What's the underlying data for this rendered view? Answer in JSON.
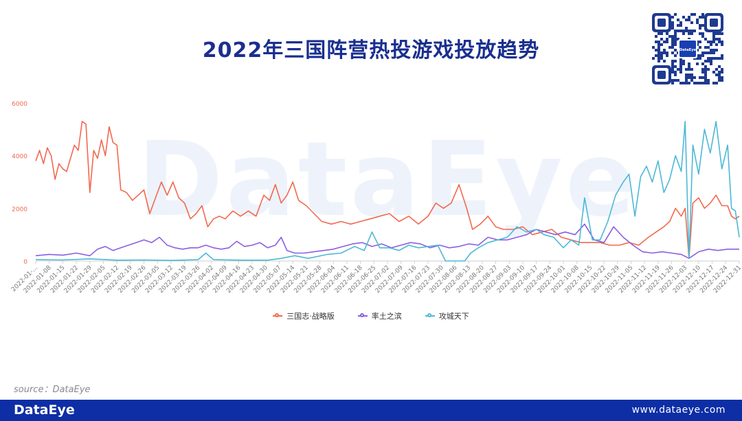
{
  "header": {
    "title": "2022年三国阵营热投游戏投放趋势"
  },
  "brand": {
    "watermark": "DataEye",
    "qr_badge": "DataEye",
    "footer_logo": "DataEye",
    "footer_url": "www.dataeye.com"
  },
  "source": "source：DataEye",
  "colors": {
    "title": "#1a2f8f",
    "footer": "#0e2ea5"
  },
  "chart_data": {
    "type": "line",
    "y_ticks": [
      "0",
      "2000",
      "4000",
      "6000"
    ],
    "ylim": [
      0,
      6000
    ],
    "x_tick_labels": [
      "2022-01-...",
      "2022-01-08",
      "2022-01-15",
      "2022-01-22",
      "2022-01-29",
      "2022-02-05",
      "2022-02-12",
      "2022-02-19",
      "2022-02-26",
      "2022-03-05",
      "2022-03-12",
      "2022-03-19",
      "2022-03-26",
      "2022-04-02",
      "2022-04-09",
      "2022-04-16",
      "2022-04-23",
      "2022-04-30",
      "2022-05-07",
      "2022-05-14",
      "2022-05-21",
      "2022-05-28",
      "2022-06-04",
      "2022-06-11",
      "2022-06-18",
      "2022-06-25",
      "2022-07-02",
      "2022-07-09",
      "2022-07-16",
      "2022-07-23",
      "2022-07-30",
      "2022-08-06",
      "2022-08-13",
      "2022-08-20",
      "2022-08-27",
      "2022-09-03",
      "2022-09-10",
      "2022-09-17",
      "2022-09-24",
      "2022-10-01",
      "2022-10-08",
      "2022-10-15",
      "2022-10-22",
      "2022-10-29",
      "2022-11-05",
      "2022-11-12",
      "2022-11-19",
      "2022-11-26",
      "2022-12-03",
      "2022-12-10",
      "2022-12-17",
      "2022-12-24",
      "2022-12-31"
    ],
    "xlim": [
      "2022-01-01",
      "2022-12-31"
    ],
    "legend_position": "bottom",
    "grid": false,
    "series": [
      {
        "name": "三国志·战略版",
        "color": "#f2684f",
        "points": [
          [
            "2022-01-01",
            3800
          ],
          [
            "2022-01-03",
            4200
          ],
          [
            "2022-01-05",
            3700
          ],
          [
            "2022-01-07",
            4300
          ],
          [
            "2022-01-09",
            4000
          ],
          [
            "2022-01-11",
            3100
          ],
          [
            "2022-01-13",
            3700
          ],
          [
            "2022-01-15",
            3500
          ],
          [
            "2022-01-17",
            3400
          ],
          [
            "2022-01-19",
            3900
          ],
          [
            "2022-01-21",
            4400
          ],
          [
            "2022-01-23",
            4200
          ],
          [
            "2022-01-25",
            5300
          ],
          [
            "2022-01-27",
            5200
          ],
          [
            "2022-01-29",
            2600
          ],
          [
            "2022-01-31",
            4200
          ],
          [
            "2022-02-02",
            3900
          ],
          [
            "2022-02-04",
            4600
          ],
          [
            "2022-02-06",
            4000
          ],
          [
            "2022-02-08",
            5100
          ],
          [
            "2022-02-10",
            4500
          ],
          [
            "2022-02-12",
            4400
          ],
          [
            "2022-02-14",
            2700
          ],
          [
            "2022-02-17",
            2600
          ],
          [
            "2022-02-20",
            2300
          ],
          [
            "2022-02-23",
            2500
          ],
          [
            "2022-02-26",
            2700
          ],
          [
            "2022-03-01",
            1800
          ],
          [
            "2022-03-04",
            2400
          ],
          [
            "2022-03-07",
            3000
          ],
          [
            "2022-03-10",
            2500
          ],
          [
            "2022-03-13",
            3000
          ],
          [
            "2022-03-16",
            2400
          ],
          [
            "2022-03-19",
            2200
          ],
          [
            "2022-03-22",
            1600
          ],
          [
            "2022-03-25",
            1800
          ],
          [
            "2022-03-28",
            2100
          ],
          [
            "2022-03-31",
            1300
          ],
          [
            "2022-04-03",
            1600
          ],
          [
            "2022-04-06",
            1700
          ],
          [
            "2022-04-09",
            1600
          ],
          [
            "2022-04-13",
            1900
          ],
          [
            "2022-04-17",
            1700
          ],
          [
            "2022-04-21",
            1900
          ],
          [
            "2022-04-25",
            1700
          ],
          [
            "2022-04-29",
            2500
          ],
          [
            "2022-05-02",
            2300
          ],
          [
            "2022-05-05",
            2900
          ],
          [
            "2022-05-08",
            2200
          ],
          [
            "2022-05-11",
            2500
          ],
          [
            "2022-05-14",
            3000
          ],
          [
            "2022-05-17",
            2300
          ],
          [
            "2022-05-21",
            2100
          ],
          [
            "2022-05-25",
            1800
          ],
          [
            "2022-05-29",
            1500
          ],
          [
            "2022-06-03",
            1400
          ],
          [
            "2022-06-08",
            1500
          ],
          [
            "2022-06-13",
            1400
          ],
          [
            "2022-06-18",
            1500
          ],
          [
            "2022-06-23",
            1600
          ],
          [
            "2022-06-28",
            1700
          ],
          [
            "2022-07-03",
            1800
          ],
          [
            "2022-07-08",
            1500
          ],
          [
            "2022-07-13",
            1700
          ],
          [
            "2022-07-18",
            1400
          ],
          [
            "2022-07-23",
            1700
          ],
          [
            "2022-07-27",
            2200
          ],
          [
            "2022-07-31",
            2000
          ],
          [
            "2022-08-04",
            2200
          ],
          [
            "2022-08-08",
            2900
          ],
          [
            "2022-08-12",
            2000
          ],
          [
            "2022-08-15",
            1200
          ],
          [
            "2022-08-19",
            1400
          ],
          [
            "2022-08-23",
            1700
          ],
          [
            "2022-08-27",
            1300
          ],
          [
            "2022-08-31",
            1200
          ],
          [
            "2022-09-05",
            1200
          ],
          [
            "2022-09-10",
            1300
          ],
          [
            "2022-09-15",
            1000
          ],
          [
            "2022-09-20",
            1100
          ],
          [
            "2022-09-25",
            1200
          ],
          [
            "2022-09-30",
            900
          ],
          [
            "2022-10-05",
            800
          ],
          [
            "2022-10-10",
            700
          ],
          [
            "2022-10-15",
            700
          ],
          [
            "2022-10-20",
            700
          ],
          [
            "2022-10-25",
            600
          ],
          [
            "2022-10-30",
            600
          ],
          [
            "2022-11-04",
            700
          ],
          [
            "2022-11-09",
            600
          ],
          [
            "2022-11-14",
            900
          ],
          [
            "2022-11-18",
            1100
          ],
          [
            "2022-11-22",
            1300
          ],
          [
            "2022-11-25",
            1500
          ],
          [
            "2022-11-28",
            2000
          ],
          [
            "2022-12-01",
            1700
          ],
          [
            "2022-12-03",
            2000
          ],
          [
            "2022-12-05",
            100
          ],
          [
            "2022-12-07",
            2200
          ],
          [
            "2022-12-10",
            2400
          ],
          [
            "2022-12-13",
            2000
          ],
          [
            "2022-12-16",
            2200
          ],
          [
            "2022-12-19",
            2500
          ],
          [
            "2022-12-22",
            2100
          ],
          [
            "2022-12-25",
            2100
          ],
          [
            "2022-12-27",
            1700
          ],
          [
            "2022-12-29",
            1600
          ],
          [
            "2022-12-31",
            1700
          ]
        ]
      },
      {
        "name": "率土之滨",
        "color": "#8c5ee0",
        "points": [
          [
            "2022-01-01",
            200
          ],
          [
            "2022-01-08",
            250
          ],
          [
            "2022-01-15",
            220
          ],
          [
            "2022-01-22",
            300
          ],
          [
            "2022-01-29",
            200
          ],
          [
            "2022-02-02",
            450
          ],
          [
            "2022-02-06",
            550
          ],
          [
            "2022-02-10",
            400
          ],
          [
            "2022-02-14",
            500
          ],
          [
            "2022-02-18",
            600
          ],
          [
            "2022-02-22",
            700
          ],
          [
            "2022-02-26",
            800
          ],
          [
            "2022-03-02",
            700
          ],
          [
            "2022-03-06",
            900
          ],
          [
            "2022-03-10",
            600
          ],
          [
            "2022-03-14",
            500
          ],
          [
            "2022-03-18",
            450
          ],
          [
            "2022-03-22",
            500
          ],
          [
            "2022-03-26",
            500
          ],
          [
            "2022-03-30",
            600
          ],
          [
            "2022-04-03",
            500
          ],
          [
            "2022-04-07",
            450
          ],
          [
            "2022-04-11",
            500
          ],
          [
            "2022-04-15",
            750
          ],
          [
            "2022-04-19",
            550
          ],
          [
            "2022-04-23",
            600
          ],
          [
            "2022-04-27",
            700
          ],
          [
            "2022-05-01",
            500
          ],
          [
            "2022-05-05",
            600
          ],
          [
            "2022-05-08",
            900
          ],
          [
            "2022-05-11",
            400
          ],
          [
            "2022-05-15",
            300
          ],
          [
            "2022-05-20",
            300
          ],
          [
            "2022-05-25",
            350
          ],
          [
            "2022-05-30",
            400
          ],
          [
            "2022-06-04",
            450
          ],
          [
            "2022-06-09",
            550
          ],
          [
            "2022-06-14",
            650
          ],
          [
            "2022-06-19",
            700
          ],
          [
            "2022-06-24",
            550
          ],
          [
            "2022-06-29",
            650
          ],
          [
            "2022-07-04",
            500
          ],
          [
            "2022-07-09",
            600
          ],
          [
            "2022-07-14",
            700
          ],
          [
            "2022-07-19",
            650
          ],
          [
            "2022-07-24",
            500
          ],
          [
            "2022-07-29",
            600
          ],
          [
            "2022-08-03",
            500
          ],
          [
            "2022-08-08",
            550
          ],
          [
            "2022-08-13",
            650
          ],
          [
            "2022-08-18",
            600
          ],
          [
            "2022-08-23",
            900
          ],
          [
            "2022-08-28",
            800
          ],
          [
            "2022-09-02",
            800
          ],
          [
            "2022-09-07",
            900
          ],
          [
            "2022-09-12",
            1000
          ],
          [
            "2022-09-17",
            1200
          ],
          [
            "2022-09-22",
            1100
          ],
          [
            "2022-09-27",
            1000
          ],
          [
            "2022-10-02",
            1100
          ],
          [
            "2022-10-07",
            1000
          ],
          [
            "2022-10-12",
            1400
          ],
          [
            "2022-10-17",
            800
          ],
          [
            "2022-10-22",
            700
          ],
          [
            "2022-10-27",
            1300
          ],
          [
            "2022-11-01",
            900
          ],
          [
            "2022-11-06",
            600
          ],
          [
            "2022-11-11",
            350
          ],
          [
            "2022-11-16",
            300
          ],
          [
            "2022-11-21",
            350
          ],
          [
            "2022-11-26",
            300
          ],
          [
            "2022-12-01",
            250
          ],
          [
            "2022-12-05",
            100
          ],
          [
            "2022-12-10",
            350
          ],
          [
            "2022-12-15",
            450
          ],
          [
            "2022-12-20",
            400
          ],
          [
            "2022-12-25",
            450
          ],
          [
            "2022-12-31",
            450
          ]
        ]
      },
      {
        "name": "攻城天下",
        "color": "#4cb8d6",
        "points": [
          [
            "2022-01-01",
            50
          ],
          [
            "2022-01-15",
            40
          ],
          [
            "2022-01-29",
            80
          ],
          [
            "2022-02-12",
            30
          ],
          [
            "2022-02-26",
            40
          ],
          [
            "2022-03-12",
            20
          ],
          [
            "2022-03-26",
            50
          ],
          [
            "2022-03-30",
            300
          ],
          [
            "2022-04-03",
            50
          ],
          [
            "2022-04-17",
            30
          ],
          [
            "2022-05-01",
            30
          ],
          [
            "2022-05-08",
            100
          ],
          [
            "2022-05-15",
            200
          ],
          [
            "2022-05-22",
            100
          ],
          [
            "2022-06-01",
            250
          ],
          [
            "2022-06-08",
            300
          ],
          [
            "2022-06-15",
            550
          ],
          [
            "2022-06-20",
            400
          ],
          [
            "2022-06-24",
            1100
          ],
          [
            "2022-06-28",
            500
          ],
          [
            "2022-07-03",
            500
          ],
          [
            "2022-07-08",
            400
          ],
          [
            "2022-07-13",
            600
          ],
          [
            "2022-07-18",
            500
          ],
          [
            "2022-07-23",
            550
          ],
          [
            "2022-07-28",
            600
          ],
          [
            "2022-08-01",
            0
          ],
          [
            "2022-08-06",
            0
          ],
          [
            "2022-08-11",
            0
          ],
          [
            "2022-08-14",
            300
          ],
          [
            "2022-08-18",
            500
          ],
          [
            "2022-08-23",
            700
          ],
          [
            "2022-08-28",
            800
          ],
          [
            "2022-09-02",
            900
          ],
          [
            "2022-09-07",
            1300
          ],
          [
            "2022-09-12",
            1100
          ],
          [
            "2022-09-17",
            1200
          ],
          [
            "2022-09-21",
            1000
          ],
          [
            "2022-09-26",
            900
          ],
          [
            "2022-10-01",
            500
          ],
          [
            "2022-10-05",
            800
          ],
          [
            "2022-10-09",
            600
          ],
          [
            "2022-10-12",
            2400
          ],
          [
            "2022-10-16",
            800
          ],
          [
            "2022-10-20",
            800
          ],
          [
            "2022-10-24",
            1500
          ],
          [
            "2022-10-28",
            2500
          ],
          [
            "2022-11-01",
            3000
          ],
          [
            "2022-11-04",
            3300
          ],
          [
            "2022-11-07",
            1700
          ],
          [
            "2022-11-10",
            3200
          ],
          [
            "2022-11-13",
            3600
          ],
          [
            "2022-11-16",
            3000
          ],
          [
            "2022-11-19",
            3800
          ],
          [
            "2022-11-22",
            2600
          ],
          [
            "2022-11-25",
            3100
          ],
          [
            "2022-11-28",
            4000
          ],
          [
            "2022-12-01",
            3400
          ],
          [
            "2022-12-03",
            5300
          ],
          [
            "2022-12-05",
            100
          ],
          [
            "2022-12-07",
            4400
          ],
          [
            "2022-12-10",
            3300
          ],
          [
            "2022-12-13",
            5000
          ],
          [
            "2022-12-16",
            4100
          ],
          [
            "2022-12-19",
            5300
          ],
          [
            "2022-12-22",
            3500
          ],
          [
            "2022-12-25",
            4400
          ],
          [
            "2022-12-27",
            2000
          ],
          [
            "2022-12-29",
            1900
          ],
          [
            "2022-12-31",
            900
          ]
        ]
      }
    ]
  }
}
